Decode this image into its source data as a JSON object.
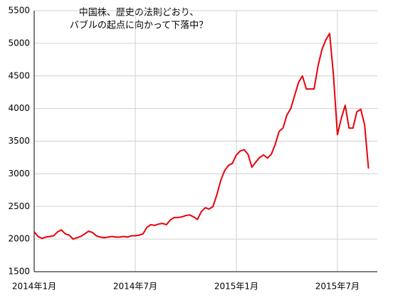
{
  "chart_data": {
    "type": "line",
    "title": [
      "中国株、歴史の法則どおり、",
      "バブルの起点に向かって下落中？"
    ],
    "categories": [
      "2014年1月",
      null,
      null,
      null,
      null,
      null,
      null,
      null,
      null,
      null,
      null,
      null,
      null,
      null,
      null,
      null,
      null,
      null,
      null,
      null,
      null,
      null,
      null,
      null,
      null,
      null,
      "2014年7月",
      null,
      null,
      null,
      null,
      null,
      null,
      null,
      null,
      null,
      null,
      null,
      null,
      null,
      null,
      null,
      null,
      null,
      null,
      null,
      null,
      null,
      null,
      null,
      null,
      null,
      "2015年1月",
      null,
      null,
      null,
      null,
      null,
      null,
      null,
      null,
      null,
      null,
      null,
      null,
      null,
      null,
      null,
      null,
      null,
      null,
      null,
      null,
      null,
      null,
      null,
      null,
      null,
      "2015年7月",
      null,
      null,
      null,
      null,
      null,
      null,
      null,
      null
    ],
    "values": [
      2110,
      2040,
      2010,
      2030,
      2040,
      2050,
      2110,
      2140,
      2080,
      2060,
      2000,
      2020,
      2040,
      2080,
      2120,
      2100,
      2050,
      2030,
      2020,
      2030,
      2040,
      2030,
      2030,
      2040,
      2030,
      2050,
      2050,
      2060,
      2080,
      2180,
      2220,
      2210,
      2230,
      2240,
      2220,
      2290,
      2330,
      2330,
      2340,
      2360,
      2370,
      2340,
      2300,
      2420,
      2480,
      2460,
      2500,
      2680,
      2900,
      3050,
      3130,
      3160,
      3290,
      3350,
      3370,
      3300,
      3100,
      3180,
      3250,
      3290,
      3240,
      3300,
      3450,
      3650,
      3700,
      3900,
      4000,
      4200,
      4400,
      4500,
      4300,
      4300,
      4300,
      4650,
      4900,
      5050,
      5150,
      4500,
      3600,
      3850,
      4050,
      3700,
      3700,
      3950,
      3990,
      3750,
      3080
    ],
    "color": "#e8000b",
    "ylim": [
      1500,
      5500
    ],
    "yticks": [
      1500,
      2000,
      2500,
      3000,
      3500,
      4000,
      4500,
      5000,
      5500
    ],
    "grid": true
  }
}
